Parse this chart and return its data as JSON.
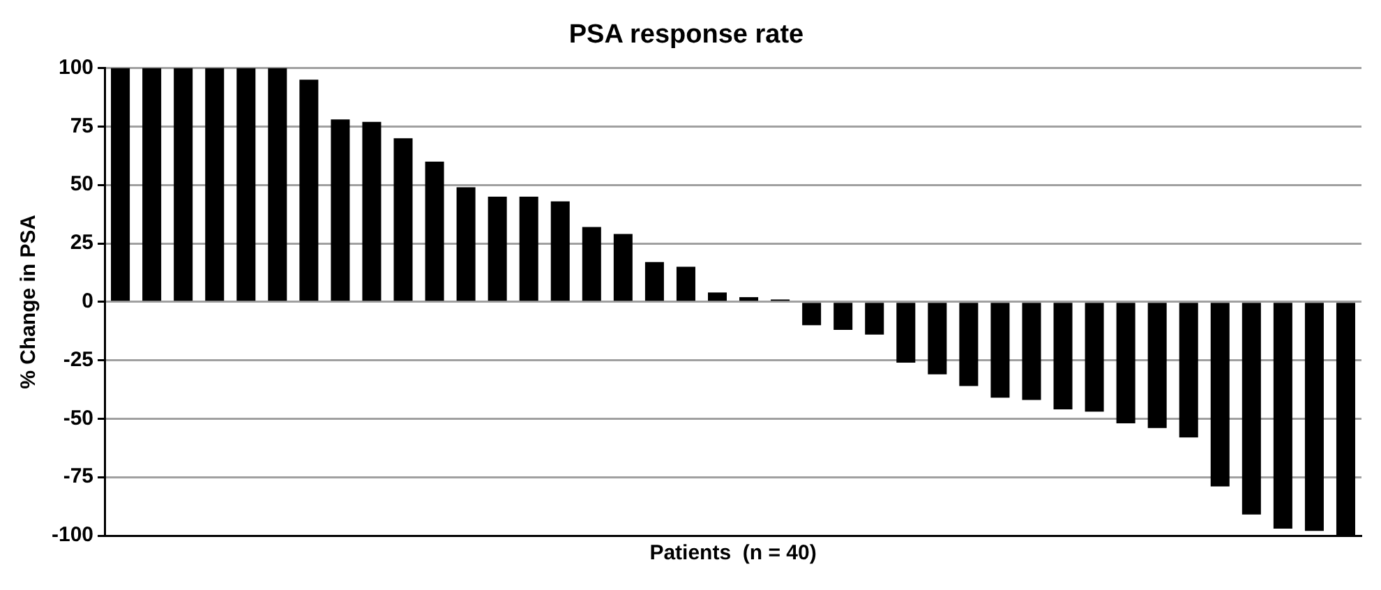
{
  "chart_data": {
    "type": "bar",
    "title": "PSA response rate",
    "xlabel": "Patients  (n = 40)",
    "ylabel": "% Change in PSA",
    "categories": [
      null,
      null,
      null,
      null,
      null,
      null,
      null,
      null,
      null,
      null,
      null,
      null,
      null,
      null,
      null,
      null,
      null,
      null,
      null,
      null,
      null,
      null,
      null,
      null,
      null,
      null,
      null,
      null,
      null,
      null,
      null,
      null,
      null,
      null,
      null,
      null,
      null,
      null,
      null,
      null
    ],
    "values": [
      100,
      100,
      100,
      100,
      100,
      100,
      95,
      78,
      77,
      70,
      60,
      49,
      45,
      45,
      43,
      32,
      29,
      17,
      15,
      4,
      2,
      1,
      -10,
      -12,
      -14,
      -26,
      -31,
      -36,
      -41,
      -42,
      -46,
      -47,
      -52,
      -54,
      -58,
      -79,
      -91,
      -97,
      -98,
      -100
    ],
    "color": "#000000",
    "ylim": [
      -100,
      100
    ],
    "yticks": [
      -100,
      -75,
      -50,
      -25,
      0,
      25,
      50,
      75,
      100
    ],
    "grid": "y",
    "tick_labels": "y"
  }
}
